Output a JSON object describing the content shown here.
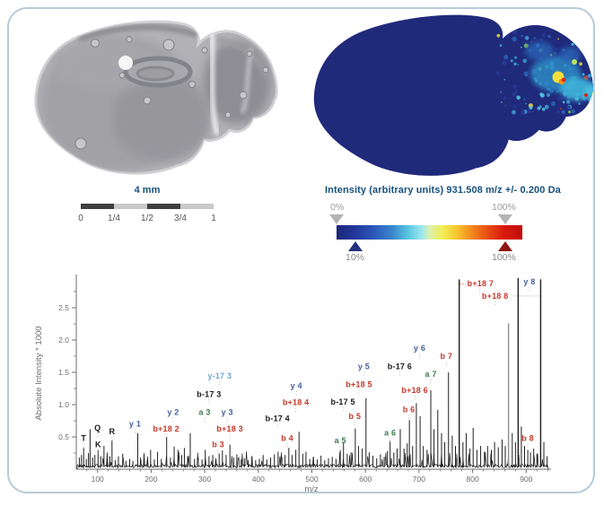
{
  "colors": {
    "frame_border": "#b7cbd8",
    "heading_blue": "#17517e",
    "axis_text": "#6e6e72",
    "scale_bar_dark": "#3f3f3f",
    "scale_bar_light": "#c9c9c9",
    "marker_gray": "#b4b4b4",
    "marker_navy": "#232e7e",
    "marker_dark_red": "#8e1410",
    "ion_base_navy": "#202a7b",
    "spectrum_trace": "#1f1f1f",
    "peak_gray": "#8e8e8e",
    "ion_y": "#46619e",
    "ion_b": "#c43a2c",
    "ion_a": "#3e7b4e",
    "ion_neutral": "#1b1b1b",
    "ion_y17": "#6fa8d0"
  },
  "optical": {
    "scale_bar": {
      "title": "4 mm",
      "tick_labels": [
        "0",
        "1/4",
        "1/2",
        "3/4",
        "1"
      ]
    }
  },
  "colorbar": {
    "title": "Intensity (arbitrary units) 931.508 m/z +/- 0.200 Da",
    "min_label": "0%",
    "max_label": "100%",
    "lower_marker_label": "10%",
    "upper_marker_label": "100%",
    "gradient_stops": [
      "#1c2878 0%",
      "#23379b 10%",
      "#2b57b8 20%",
      "#3a86cc 30%",
      "#55c3e0 38%",
      "#9fe8ee 46%",
      "#d8f0b0 50%",
      "#f2ee55 57%",
      "#f7c32e 65%",
      "#f3871c 73%",
      "#e84812 82%",
      "#d81a0e 90%",
      "#c10d0c 100%"
    ]
  },
  "chart_data": {
    "type": "line",
    "subtype": "mass-spectrum",
    "title": "",
    "xlabel": "m/z",
    "ylabel": "Absolute Intensity * 1000",
    "xlim": [
      60,
      945
    ],
    "ylim": [
      0,
      3.0
    ],
    "x_ticks": [
      100,
      200,
      300,
      400,
      500,
      600,
      700,
      800,
      900
    ],
    "x_tick_labels": [
      "100",
      "200",
      "300",
      "400",
      "500",
      "600",
      "700",
      "800",
      "900"
    ],
    "y_ticks": [
      0.5,
      1.0,
      1.5,
      2.0,
      2.5
    ],
    "y_tick_labels": [
      "0.5",
      "1.0",
      "1.5",
      "2.0",
      "2.5"
    ],
    "grid": false,
    "peaks": [
      [
        66,
        0.18
      ],
      [
        70,
        0.22
      ],
      [
        74,
        0.33
      ],
      [
        79,
        0.16
      ],
      [
        83,
        0.25
      ],
      [
        86,
        0.62
      ],
      [
        91,
        0.18
      ],
      [
        95,
        0.22
      ],
      [
        101,
        0.3
      ],
      [
        106,
        0.2
      ],
      [
        112,
        0.36
      ],
      [
        118,
        0.16
      ],
      [
        123,
        0.2
      ],
      [
        127,
        0.45
      ],
      [
        133,
        0.14
      ],
      [
        139,
        0.2
      ],
      [
        147,
        0.24
      ],
      [
        153,
        0.13
      ],
      [
        160,
        0.16
      ],
      [
        166,
        0.13
      ],
      [
        175,
        0.56
      ],
      [
        181,
        0.14
      ],
      [
        187,
        0.16
      ],
      [
        193,
        0.14
      ],
      [
        199,
        0.3
      ],
      [
        206,
        0.15
      ],
      [
        212,
        0.27
      ],
      [
        219,
        0.16
      ],
      [
        229,
        0.5
      ],
      [
        236,
        0.18
      ],
      [
        243,
        0.35
      ],
      [
        250,
        0.3
      ],
      [
        257,
        0.22
      ],
      [
        262,
        0.33
      ],
      [
        268,
        0.2
      ],
      [
        273,
        0.56
      ],
      [
        281,
        0.16
      ],
      [
        288,
        0.18
      ],
      [
        295,
        0.15
      ],
      [
        301,
        0.3
      ],
      [
        308,
        0.2
      ],
      [
        315,
        0.22
      ],
      [
        321,
        0.15
      ],
      [
        327,
        0.24
      ],
      [
        333,
        0.29
      ],
      [
        340,
        0.22
      ],
      [
        347,
        0.38
      ],
      [
        354,
        0.18
      ],
      [
        360,
        0.23
      ],
      [
        368,
        0.15
      ],
      [
        374,
        0.17
      ],
      [
        381,
        0.14
      ],
      [
        388,
        0.18
      ],
      [
        395,
        0.14
      ],
      [
        402,
        0.16
      ],
      [
        409,
        0.22
      ],
      [
        416,
        0.15
      ],
      [
        423,
        0.18
      ],
      [
        430,
        0.23
      ],
      [
        437,
        0.27
      ],
      [
        444,
        0.19
      ],
      [
        450,
        0.22
      ],
      [
        457,
        0.33
      ],
      [
        463,
        0.22
      ],
      [
        470,
        0.3
      ],
      [
        476,
        0.58
      ],
      [
        483,
        0.24
      ],
      [
        489,
        0.27
      ],
      [
        496,
        0.16
      ],
      [
        503,
        0.19
      ],
      [
        510,
        0.15
      ],
      [
        517,
        0.21
      ],
      [
        524,
        0.14
      ],
      [
        531,
        0.17
      ],
      [
        538,
        0.19
      ],
      [
        545,
        0.16
      ],
      [
        553,
        0.29
      ],
      [
        559,
        0.42
      ],
      [
        566,
        0.24
      ],
      [
        573,
        0.26
      ],
      [
        581,
        0.63
      ],
      [
        587,
        0.36
      ],
      [
        594,
        0.32
      ],
      [
        601,
        1.1
      ],
      [
        607,
        0.26
      ],
      [
        614,
        0.21
      ],
      [
        621,
        0.17
      ],
      [
        628,
        0.23
      ],
      [
        635,
        0.19
      ],
      [
        641,
        0.28
      ],
      [
        646,
        0.44
      ],
      [
        653,
        0.26
      ],
      [
        659,
        0.32
      ],
      [
        665,
        0.62
      ],
      [
        672,
        0.32
      ],
      [
        678,
        0.4
      ],
      [
        682,
        0.76
      ],
      [
        688,
        0.36
      ],
      [
        695,
        1.02
      ],
      [
        702,
        0.82
      ],
      [
        708,
        0.36
      ],
      [
        715,
        0.3
      ],
      [
        722,
        1.22
      ],
      [
        728,
        0.62
      ],
      [
        735,
        0.92
      ],
      [
        742,
        0.56
      ],
      [
        748,
        0.42
      ],
      [
        755,
        1.5
      ],
      [
        762,
        0.52
      ],
      [
        768,
        0.36
      ],
      [
        775,
        2.94
      ],
      [
        782,
        0.42
      ],
      [
        788,
        0.56
      ],
      [
        795,
        0.32
      ],
      [
        801,
        0.64
      ],
      [
        808,
        0.3
      ],
      [
        815,
        0.36
      ],
      [
        822,
        0.27
      ],
      [
        828,
        0.36
      ],
      [
        835,
        0.3
      ],
      [
        841,
        0.42
      ],
      [
        848,
        0.34
      ],
      [
        855,
        0.46
      ],
      [
        861,
        0.36
      ],
      [
        867,
        2.26
      ],
      [
        874,
        0.56
      ],
      [
        880,
        0.42
      ],
      [
        885,
        2.96
      ],
      [
        891,
        0.66
      ],
      [
        897,
        0.36
      ],
      [
        903,
        0.3
      ],
      [
        908,
        0.26
      ],
      [
        914,
        0.32
      ],
      [
        920,
        0.24
      ],
      [
        927,
        2.94
      ],
      [
        933,
        0.42
      ],
      [
        939,
        0.2
      ]
    ],
    "gray_peaks": [
      867
    ],
    "annotations": [
      {
        "text": "T",
        "mz": 74,
        "h": 0.44,
        "c": "black"
      },
      {
        "text": "Q",
        "mz": 100,
        "h": 0.6,
        "c": "black"
      },
      {
        "text": "K",
        "mz": 101,
        "h": 0.34,
        "c": "black"
      },
      {
        "text": "R",
        "mz": 127,
        "h": 0.54,
        "c": "black"
      },
      {
        "text": "y 1",
        "mz": 170,
        "h": 0.66,
        "c": "blue"
      },
      {
        "text": "b+18 2",
        "mz": 228,
        "h": 0.58,
        "c": "red"
      },
      {
        "text": "y 2",
        "mz": 241,
        "h": 0.84,
        "c": "blue"
      },
      {
        "text": "a 3",
        "mz": 300,
        "h": 0.84,
        "c": "green"
      },
      {
        "text": "y 3",
        "mz": 342,
        "h": 0.84,
        "c": "blue"
      },
      {
        "text": "b-17 3",
        "mz": 308,
        "h": 1.12,
        "c": "black"
      },
      {
        "text": "y-17 3",
        "mz": 328,
        "h": 1.4,
        "c": "lightblue"
      },
      {
        "text": "b 3",
        "mz": 325,
        "h": 0.34,
        "c": "red"
      },
      {
        "text": "b+18 3",
        "mz": 347,
        "h": 0.58,
        "c": "red"
      },
      {
        "text": "b-17 4",
        "mz": 436,
        "h": 0.74,
        "c": "black"
      },
      {
        "text": "b 4",
        "mz": 454,
        "h": 0.44,
        "c": "red"
      },
      {
        "text": "b+18 4",
        "mz": 470,
        "h": 0.99,
        "c": "red"
      },
      {
        "text": "y 4",
        "mz": 471,
        "h": 1.25,
        "c": "blue"
      },
      {
        "text": "a 5",
        "mz": 553,
        "h": 0.4,
        "c": "green"
      },
      {
        "text": "b-17 5",
        "mz": 558,
        "h": 1.0,
        "c": "black"
      },
      {
        "text": "b 5",
        "mz": 580,
        "h": 0.78,
        "c": "red"
      },
      {
        "text": "b+18 5",
        "mz": 588,
        "h": 1.27,
        "c": "red"
      },
      {
        "text": "y 5",
        "mz": 597,
        "h": 1.55,
        "c": "blue"
      },
      {
        "text": "a 6",
        "mz": 646,
        "h": 0.52,
        "c": "green"
      },
      {
        "text": "b-17 6",
        "mz": 664,
        "h": 1.55,
        "c": "black"
      },
      {
        "text": "b 6",
        "mz": 681,
        "h": 0.88,
        "c": "red"
      },
      {
        "text": "b+18 6",
        "mz": 692,
        "h": 1.18,
        "c": "red"
      },
      {
        "text": "y 6",
        "mz": 701,
        "h": 1.83,
        "c": "blue"
      },
      {
        "text": "a 7",
        "mz": 722,
        "h": 1.43,
        "c": "green"
      },
      {
        "text": "b 7",
        "mz": 751,
        "h": 1.71,
        "c": "red"
      },
      {
        "text": "b+18 7",
        "mz": 790,
        "h": 2.83,
        "c": "red",
        "anchor": "start",
        "dots_from": 776
      },
      {
        "text": "b+18 8",
        "mz": 842,
        "h": 2.64,
        "c": "red",
        "dots_to": 924
      },
      {
        "text": "y 8",
        "mz": 906,
        "h": 2.86,
        "c": "blue",
        "dots_to": 924
      },
      {
        "text": "b 8",
        "mz": 903,
        "h": 0.44,
        "c": "red"
      }
    ],
    "legend": null
  }
}
